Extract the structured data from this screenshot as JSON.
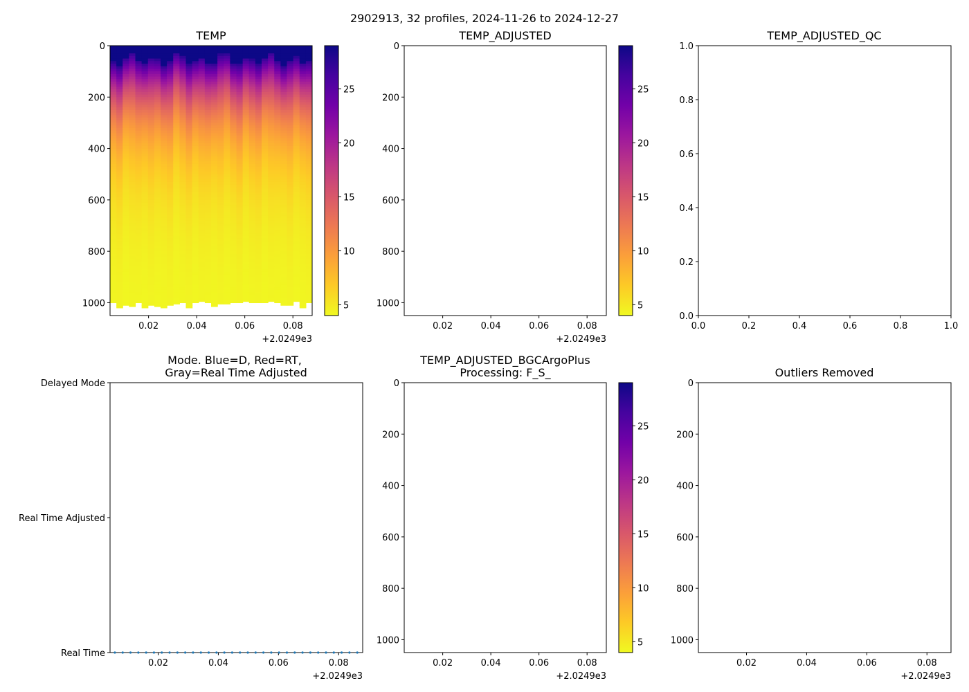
{
  "figure": {
    "suptitle": "2902913, 32 profiles, 2024-11-26 to 2024-12-27"
  },
  "colormap": {
    "name": "plasma_r",
    "stops": [
      "#f0f921",
      "#fdca26",
      "#fb9f3a",
      "#ed7953",
      "#d8576b",
      "#bd3786",
      "#9c179e",
      "#7201a8",
      "#46039f",
      "#0d0887"
    ]
  },
  "chart_data": [
    {
      "id": "temp",
      "type": "heatmap",
      "title": "TEMP",
      "x_range": [
        0.004,
        0.088
      ],
      "x_ticks": [
        "0.02",
        "0.04",
        "0.06",
        "0.08"
      ],
      "x_tick_values": [
        0.02,
        0.04,
        0.06,
        0.08
      ],
      "x_offset_label": "+2.0249e3",
      "y_range": [
        1050,
        0
      ],
      "y_ticks": [
        "0",
        "200",
        "400",
        "600",
        "800",
        "1000"
      ],
      "y_tick_values": [
        0,
        200,
        400,
        600,
        800,
        1000
      ],
      "n_profiles": 32,
      "max_depth_per_profile": [
        1000,
        1020,
        1010,
        1015,
        1000,
        1020,
        1010,
        1015,
        1020,
        1010,
        1005,
        1000,
        1020,
        1000,
        995,
        1000,
        1015,
        1005,
        1005,
        1000,
        1000,
        995,
        1000,
        1000,
        1000,
        995,
        1000,
        1010,
        1010,
        995,
        1020,
        1000
      ],
      "surface_temp": 29,
      "deep_temp": 4,
      "colorbar": {
        "ticks": [
          "5",
          "10",
          "15",
          "20",
          "25"
        ],
        "tick_values": [
          5,
          10,
          15,
          20,
          25
        ],
        "range": [
          4,
          29
        ]
      }
    },
    {
      "id": "temp_adjusted",
      "type": "heatmap",
      "title": "TEMP_ADJUSTED",
      "x_range": [
        0.004,
        0.088
      ],
      "x_ticks": [
        "0.02",
        "0.04",
        "0.06",
        "0.08"
      ],
      "x_tick_values": [
        0.02,
        0.04,
        0.06,
        0.08
      ],
      "x_offset_label": "+2.0249e3",
      "y_range": [
        1050,
        0
      ],
      "y_ticks": [
        "0",
        "200",
        "400",
        "600",
        "800",
        "1000"
      ],
      "y_tick_values": [
        0,
        200,
        400,
        600,
        800,
        1000
      ],
      "values": [],
      "colorbar": {
        "ticks": [
          "5",
          "10",
          "15",
          "20",
          "25"
        ],
        "tick_values": [
          5,
          10,
          15,
          20,
          25
        ],
        "range": [
          4,
          29
        ]
      }
    },
    {
      "id": "temp_adjusted_qc",
      "type": "scatter",
      "title": "TEMP_ADJUSTED_QC",
      "x_range": [
        0,
        1
      ],
      "x_ticks": [
        "0.0",
        "0.2",
        "0.4",
        "0.6",
        "0.8",
        "1.0"
      ],
      "x_tick_values": [
        0,
        0.2,
        0.4,
        0.6,
        0.8,
        1.0
      ],
      "y_range": [
        0,
        1
      ],
      "y_ticks": [
        "0.0",
        "0.2",
        "0.4",
        "0.6",
        "0.8",
        "1.0"
      ],
      "y_tick_values": [
        0,
        0.2,
        0.4,
        0.6,
        0.8,
        1.0
      ],
      "values": []
    },
    {
      "id": "mode",
      "type": "scatter",
      "title_lines": [
        "Mode. Blue=D, Red=RT,",
        "Gray=Real Time Adjusted"
      ],
      "x_range": [
        0.004,
        0.088
      ],
      "x_ticks": [
        "0.02",
        "0.04",
        "0.06",
        "0.08"
      ],
      "x_tick_values": [
        0.02,
        0.04,
        0.06,
        0.08
      ],
      "x_offset_label": "+2.0249e3",
      "y_categories": [
        "Real Time",
        "Real Time Adjusted",
        "Delayed Mode"
      ],
      "y_range": [
        0,
        2
      ],
      "point_color": "#1f77b4",
      "points": {
        "category_index": 0,
        "x": [
          0.0056,
          0.0082,
          0.0108,
          0.0134,
          0.016,
          0.0186,
          0.0212,
          0.0238,
          0.0264,
          0.029,
          0.0316,
          0.0342,
          0.0368,
          0.0394,
          0.042,
          0.0446,
          0.0472,
          0.0498,
          0.0524,
          0.055,
          0.0576,
          0.0602,
          0.0628,
          0.0654,
          0.068,
          0.0706,
          0.0732,
          0.0758,
          0.0784,
          0.081,
          0.0836,
          0.0862
        ]
      }
    },
    {
      "id": "temp_adjusted_bgcargoplus",
      "type": "heatmap",
      "title_lines": [
        "TEMP_ADJUSTED_BGCArgoPlus",
        "Processing: F_S_"
      ],
      "x_range": [
        0.004,
        0.088
      ],
      "x_ticks": [
        "0.02",
        "0.04",
        "0.06",
        "0.08"
      ],
      "x_tick_values": [
        0.02,
        0.04,
        0.06,
        0.08
      ],
      "x_offset_label": "+2.0249e3",
      "y_range": [
        1050,
        0
      ],
      "y_ticks": [
        "0",
        "200",
        "400",
        "600",
        "800",
        "1000"
      ],
      "y_tick_values": [
        0,
        200,
        400,
        600,
        800,
        1000
      ],
      "values": [],
      "colorbar": {
        "ticks": [
          "5",
          "10",
          "15",
          "20",
          "25"
        ],
        "tick_values": [
          5,
          10,
          15,
          20,
          25
        ],
        "range": [
          4,
          29
        ]
      }
    },
    {
      "id": "outliers_removed",
      "type": "heatmap",
      "title": "Outliers Removed",
      "x_range": [
        0.004,
        0.088
      ],
      "x_ticks": [
        "0.02",
        "0.04",
        "0.06",
        "0.08"
      ],
      "x_tick_values": [
        0.02,
        0.04,
        0.06,
        0.08
      ],
      "x_offset_label": "+2.0249e3",
      "y_range": [
        1050,
        0
      ],
      "y_ticks": [
        "0",
        "200",
        "400",
        "600",
        "800",
        "1000"
      ],
      "y_tick_values": [
        0,
        200,
        400,
        600,
        800,
        1000
      ],
      "values": []
    }
  ]
}
